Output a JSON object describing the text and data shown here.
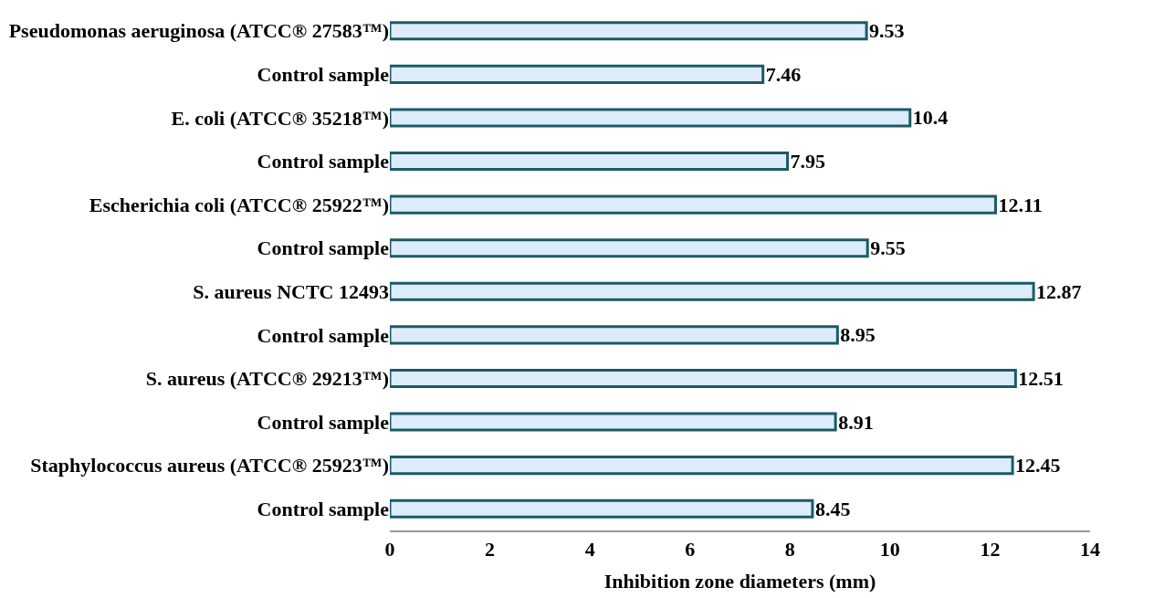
{
  "chart_data": {
    "type": "bar",
    "orientation": "horizontal",
    "xlabel": "Inhibition zone diameters (mm)",
    "categories": [
      "Pseudomonas aeruginosa (ATCC® 27583™)",
      "Control sample",
      "E. coli (ATCC® 35218™)",
      "Control sample",
      "Escherichia coli (ATCC® 25922™)",
      "Control sample",
      "S. aureus NCTC 12493",
      "Control sample",
      "S. aureus (ATCC® 29213™)",
      "Control sample",
      "Staphylococcus aureus (ATCC® 25923™)",
      "Control sample"
    ],
    "values": [
      9.53,
      7.46,
      10.4,
      7.95,
      12.11,
      9.55,
      12.87,
      8.95,
      12.51,
      8.91,
      12.45,
      8.45
    ],
    "color": "#dcecf8",
    "data_labels": true,
    "xlim": [
      0,
      14
    ],
    "xticks": [
      0,
      2,
      4,
      6,
      8,
      10,
      12,
      14
    ]
  }
}
